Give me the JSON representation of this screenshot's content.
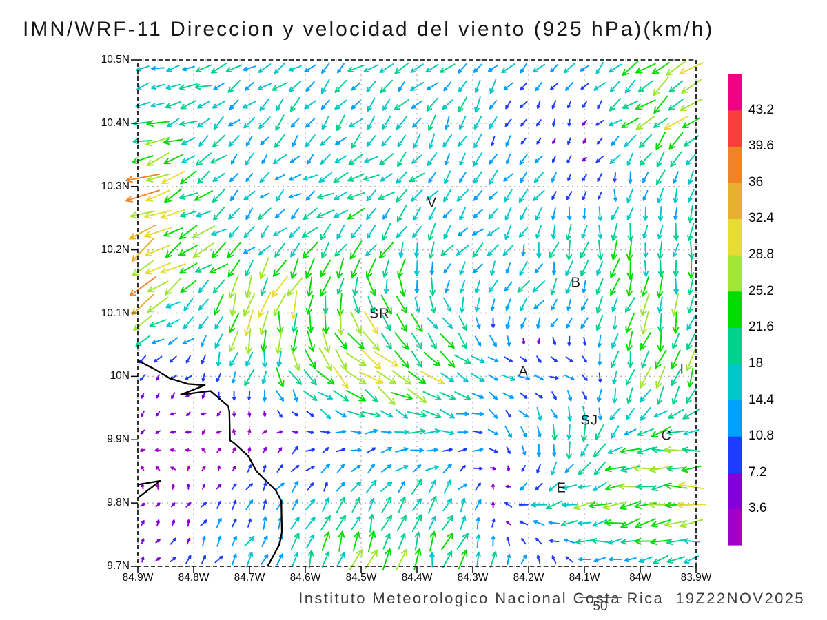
{
  "title": "IMN/WRF-11 Direccion y velocidad del viento (925 hPa)(km/h)",
  "footer": {
    "text": "Instituto Meteorologico Nacional Costa Rica  19Z22NOV2025",
    "ref_label": "50"
  },
  "axes": {
    "y_ticks": [
      "10.5N",
      "10.4N",
      "10.3N",
      "10.2N",
      "10.1N",
      "10N",
      "9.9N",
      "9.8N",
      "9.7N"
    ],
    "x_ticks": [
      "84.9W",
      "84.8W",
      "84.7W",
      "84.6W",
      "84.5W",
      "84.4W",
      "84.3W",
      "84.2W",
      "84.1W",
      "84W",
      "83.9W"
    ]
  },
  "colorbar": {
    "tick_labels_top_to_bottom": [
      "43.2",
      "39.6",
      "36",
      "32.4",
      "28.8",
      "25.2",
      "21.6",
      "18",
      "14.4",
      "10.8",
      "7.2",
      "3.6"
    ],
    "colors_bottom_to_top": [
      "#A000C8",
      "#8200DC",
      "#1E3CFF",
      "#00A0FF",
      "#00C8C8",
      "#00D28C",
      "#00DC00",
      "#A0E632",
      "#E6DC32",
      "#E6AF2D",
      "#F08228",
      "#FA3C3C",
      "#F00082"
    ]
  },
  "chart_data": {
    "type": "vector_field",
    "variable": "Direccion y velocidad del viento",
    "level": "925 hPa",
    "units": "km/h",
    "model": "IMN/WRF-11",
    "valid_time": "19Z22NOV2025",
    "reference_arrow_kmh": 50,
    "lon_range": [
      -84.9,
      -83.9
    ],
    "lat_range": [
      9.7,
      10.5
    ],
    "grid_on": true,
    "speed_levels": [
      3.6,
      7.2,
      10.8,
      14.4,
      18,
      21.6,
      25.2,
      28.8,
      32.4,
      36,
      39.6,
      43.2
    ],
    "wind_grid": {
      "lats": [
        10.5,
        10.4,
        10.3,
        10.2,
        10.1,
        10.0,
        9.9,
        9.8,
        9.7
      ],
      "lons": [
        -84.9,
        -84.8,
        -84.7,
        -84.6,
        -84.5,
        -84.4,
        -84.3,
        -84.2,
        -84.1,
        -84.0,
        -83.9
      ],
      "uv": [
        [
          [
            -14,
            -6
          ],
          [
            -16,
            -4
          ],
          [
            -14,
            -8
          ],
          [
            -12,
            -9
          ],
          [
            -13,
            -9
          ],
          [
            -12,
            -10
          ],
          [
            -11,
            -11
          ],
          [
            -10,
            -12
          ],
          [
            -10,
            -10
          ],
          [
            -18,
            -12
          ],
          [
            -20,
            -14
          ]
        ],
        [
          [
            -22,
            -6
          ],
          [
            -15,
            -9
          ],
          [
            -11,
            -11
          ],
          [
            -9,
            -13
          ],
          [
            -11,
            -12
          ],
          [
            -9,
            -14
          ],
          [
            -7,
            -14
          ],
          [
            -4,
            -6
          ],
          [
            -3,
            -5
          ],
          [
            -18,
            -14
          ],
          [
            -20,
            -16
          ]
        ],
        [
          [
            -32,
            -14
          ],
          [
            -18,
            -10
          ],
          [
            -8,
            -10
          ],
          [
            -13,
            -7
          ],
          [
            -16,
            -8
          ],
          [
            -12,
            -10
          ],
          [
            -8,
            -14
          ],
          [
            -8,
            -12
          ],
          [
            -3,
            -7
          ],
          [
            -2,
            -14
          ],
          [
            -2,
            -16
          ]
        ],
        [
          [
            -28,
            -18
          ],
          [
            -22,
            -13
          ],
          [
            -14,
            -11
          ],
          [
            -15,
            -16
          ],
          [
            -11,
            -18
          ],
          [
            -7,
            -18
          ],
          [
            -13,
            -9
          ],
          [
            -5,
            -16
          ],
          [
            -3,
            -18
          ],
          [
            -3,
            -20
          ],
          [
            -3,
            -17
          ]
        ],
        [
          [
            -27,
            -14
          ],
          [
            -10,
            -9
          ],
          [
            -6,
            -32
          ],
          [
            -7,
            -26
          ],
          [
            12,
            -24
          ],
          [
            8,
            -18
          ],
          [
            4,
            -16
          ],
          [
            -10,
            -11
          ],
          [
            -5,
            -13
          ],
          [
            -8,
            -21
          ],
          [
            -5,
            -21
          ]
        ],
        [
          [
            -5,
            -6
          ],
          [
            -4,
            -5
          ],
          [
            -4,
            -17
          ],
          [
            13,
            -19
          ],
          [
            22,
            -18
          ],
          [
            24,
            -17
          ],
          [
            15,
            -5
          ],
          [
            12,
            -3
          ],
          [
            9,
            -5
          ],
          [
            -7,
            -24
          ],
          [
            -5,
            -24
          ]
        ],
        [
          [
            -4,
            -3
          ],
          [
            -3,
            -1
          ],
          [
            2,
            4
          ],
          [
            8,
            3
          ],
          [
            12,
            2
          ],
          [
            14,
            1
          ],
          [
            12,
            -3
          ],
          [
            4,
            -14
          ],
          [
            -3,
            -20
          ],
          [
            -20,
            -4
          ],
          [
            -24,
            -2
          ]
        ],
        [
          [
            3,
            4
          ],
          [
            3,
            6
          ],
          [
            5,
            9
          ],
          [
            6,
            13
          ],
          [
            8,
            16
          ],
          [
            7,
            18
          ],
          [
            5,
            12
          ],
          [
            -14,
            -3
          ],
          [
            -22,
            -3
          ],
          [
            -25,
            -4
          ],
          [
            -27,
            -3
          ]
        ],
        [
          [
            2,
            4
          ],
          [
            5,
            8
          ],
          [
            7,
            13
          ],
          [
            8,
            18
          ],
          [
            6,
            21
          ],
          [
            5,
            22
          ],
          [
            6,
            18
          ],
          [
            4,
            12
          ],
          [
            -12,
            2
          ],
          [
            -16,
            -3
          ],
          [
            -18,
            -4
          ]
        ]
      ]
    },
    "stations": [
      {
        "label": "V",
        "lon": -84.373,
        "lat": 10.273
      },
      {
        "label": "B",
        "lon": -84.115,
        "lat": 10.146
      },
      {
        "label": "SR",
        "lon": -84.467,
        "lat": 10.097
      },
      {
        "label": "A",
        "lon": -84.209,
        "lat": 10.006
      },
      {
        "label": "SJ",
        "lon": -84.091,
        "lat": 9.929
      },
      {
        "label": "C",
        "lon": -83.953,
        "lat": 9.905
      },
      {
        "label": "E",
        "lon": -84.141,
        "lat": 9.822
      },
      {
        "label": "I",
        "lon": -83.925,
        "lat": 10.009
      }
    ],
    "coastline": [
      [
        [
          -84.9,
          10.025
        ],
        [
          -84.869,
          10.011
        ],
        [
          -84.843,
          9.997
        ],
        [
          -84.81,
          9.988
        ],
        [
          -84.78,
          9.986
        ],
        [
          -84.823,
          9.971
        ],
        [
          -84.77,
          9.977
        ],
        [
          -84.738,
          9.953
        ],
        [
          -84.736,
          9.945
        ],
        [
          -84.735,
          9.899
        ],
        [
          -84.728,
          9.895
        ],
        [
          -84.702,
          9.874
        ],
        [
          -84.688,
          9.851
        ],
        [
          -84.674,
          9.838
        ],
        [
          -84.653,
          9.82
        ],
        [
          -84.643,
          9.803
        ],
        [
          -84.642,
          9.754
        ],
        [
          -84.646,
          9.735
        ],
        [
          -84.665,
          9.704
        ],
        [
          -84.668,
          9.7
        ]
      ],
      [
        [
          -84.9,
          9.829
        ],
        [
          -84.86,
          9.835
        ],
        [
          -84.9,
          9.808
        ]
      ]
    ]
  }
}
